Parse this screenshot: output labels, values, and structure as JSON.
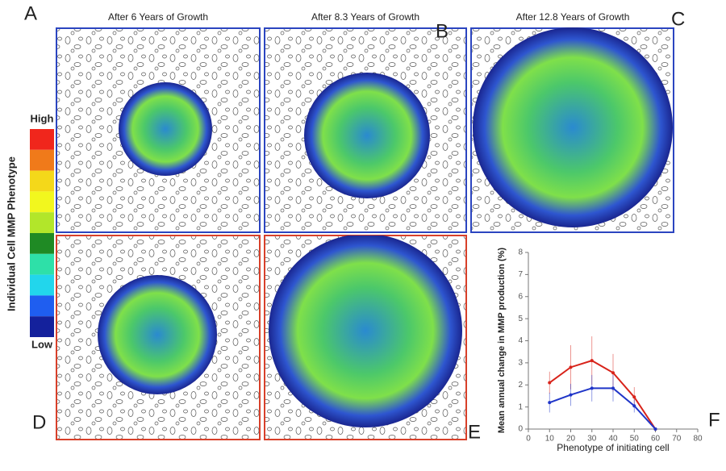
{
  "panel_labels": [
    "A",
    "B",
    "C",
    "D",
    "E",
    "F"
  ],
  "panel_titles": [
    "After 6 Years of Growth",
    "After 8.3 Years of Growth",
    "After 12.8 Years of Growth"
  ],
  "colorbar": {
    "label": "Individual Cell MMP Phenotype",
    "high": "High",
    "low": "Low",
    "colors": [
      "#f0261c",
      "#f07a1a",
      "#f4d81a",
      "#f2f71e",
      "#b2e62a",
      "#1f8a24",
      "#2ee0a8",
      "#22d6ec",
      "#1f5ef0",
      "#14219c"
    ]
  },
  "chart_data": {
    "type": "line",
    "x_label": "Phenotype of initiating cell",
    "y_label": "Mean annual change in MMP production (%)",
    "x": [
      10,
      20,
      30,
      40,
      50,
      60
    ],
    "series": [
      {
        "color": "#d8231a",
        "values": [
          2.1,
          2.8,
          3.1,
          2.55,
          1.45,
          0
        ],
        "errors": [
          0.5,
          1.0,
          1.1,
          0.85,
          0.45,
          0
        ]
      },
      {
        "color": "#1f35c8",
        "values": [
          1.2,
          1.55,
          1.85,
          1.85,
          1.05,
          0
        ],
        "errors": [
          0.45,
          0.5,
          0.6,
          0.6,
          0.3,
          0
        ]
      }
    ],
    "xlim": [
      0,
      80
    ],
    "ylim": [
      0,
      8
    ],
    "xticks": [
      0,
      10,
      20,
      30,
      40,
      50,
      60,
      70,
      80
    ],
    "yticks": [
      0,
      1,
      2,
      3,
      4,
      5,
      6,
      7,
      8
    ]
  }
}
